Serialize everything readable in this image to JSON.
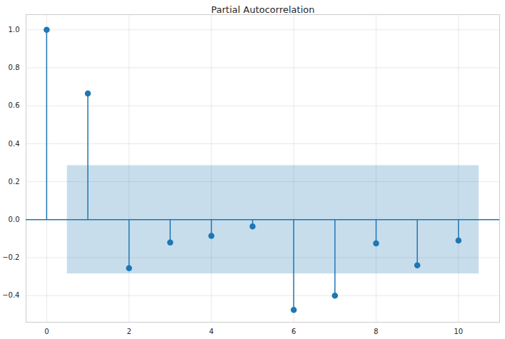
{
  "chart_data": {
    "type": "stem",
    "title": "Partial Autocorrelation",
    "x": [
      0,
      1,
      2,
      3,
      4,
      5,
      6,
      7,
      8,
      9,
      10
    ],
    "values": [
      1.0,
      0.665,
      -0.255,
      -0.12,
      -0.085,
      -0.035,
      -0.475,
      -0.4,
      -0.125,
      -0.24,
      -0.11
    ],
    "confint": {
      "x": [
        0.5,
        10.5
      ],
      "lower": -0.285,
      "upper": 0.285
    },
    "color": "#1f77b4",
    "xlim": [
      -0.5,
      11
    ],
    "ylim": [
      -0.54,
      1.08
    ],
    "xticks": [
      0,
      2,
      4,
      6,
      8,
      10
    ],
    "yticks": [
      {
        "value": -0.4,
        "label": "−0.4"
      },
      {
        "value": -0.2,
        "label": "−0.2"
      },
      {
        "value": 0,
        "label": "0.0"
      },
      {
        "value": 0.2,
        "label": "0.2"
      },
      {
        "value": 0.4,
        "label": "0.4"
      },
      {
        "value": 0.6,
        "label": "0.6"
      },
      {
        "value": 0.8,
        "label": "0.8"
      },
      {
        "value": 1.0,
        "label": "1.0"
      }
    ],
    "grid": true
  }
}
